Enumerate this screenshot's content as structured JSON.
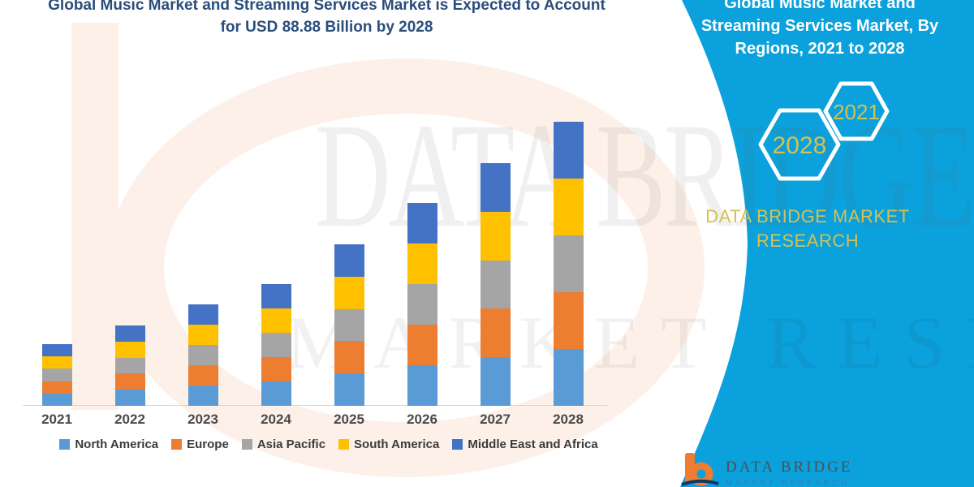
{
  "main_chart": {
    "title_line1": "Global Music Market and Streaming Services Market is Expected to Account",
    "title_line2": "for USD 88.88 Billion by 2028"
  },
  "chart_data": {
    "type": "bar",
    "stacked": true,
    "title": "Global Music Market and Streaming Services Market is Expected to Account for USD 88.88 Billion by 2028",
    "unit": "USD Billion",
    "categories": [
      "2021",
      "2022",
      "2023",
      "2024",
      "2025",
      "2026",
      "2027",
      "2028"
    ],
    "series": [
      {
        "name": "North America",
        "color": "#5B9BD5",
        "values": [
          3.86,
          5.03,
          6.35,
          7.62,
          10.11,
          12.7,
          15.19,
          17.78
        ]
      },
      {
        "name": "Europe",
        "color": "#ED7D31",
        "values": [
          3.86,
          5.03,
          6.35,
          7.62,
          10.11,
          12.7,
          15.19,
          17.78
        ]
      },
      {
        "name": "Asia Pacific",
        "color": "#A5A5A5",
        "values": [
          3.86,
          5.03,
          6.35,
          7.62,
          10.11,
          12.7,
          15.19,
          17.78
        ]
      },
      {
        "name": "South America",
        "color": "#FFC000",
        "values": [
          3.86,
          5.03,
          6.35,
          7.62,
          10.11,
          12.7,
          15.19,
          17.78
        ]
      },
      {
        "name": "Middle East and Africa",
        "color": "#4472C4",
        "values": [
          3.86,
          5.03,
          6.35,
          7.62,
          10.11,
          12.7,
          15.19,
          17.78
        ]
      }
    ],
    "totals": [
      19.3,
      25.15,
      31.75,
      38.1,
      50.55,
      63.5,
      75.95,
      88.88
    ],
    "ylim": [
      0,
      95
    ],
    "y_axis_visible": false,
    "gridlines": false,
    "legend_position": "bottom"
  },
  "side_panel": {
    "title_line1": "Global Music Market and",
    "title_line2": "Streaming Services Market, By",
    "title_line3": "Regions, 2021 to 2028",
    "hexagons": [
      {
        "label": "2021"
      },
      {
        "label": "2028"
      }
    ],
    "brand_line1": "DATA BRIDGE MARKET",
    "brand_line2": "RESEARCH",
    "background_color": "#0aa1dc",
    "accent_text_color": "#d2c255"
  },
  "footer_logo": {
    "brand": "DATA BRIDGE",
    "sub_brand": "MARKET RESEARCH"
  },
  "watermark": {
    "line1": "DATA BRIDGE",
    "line2": "MARKET RESEARCH"
  }
}
